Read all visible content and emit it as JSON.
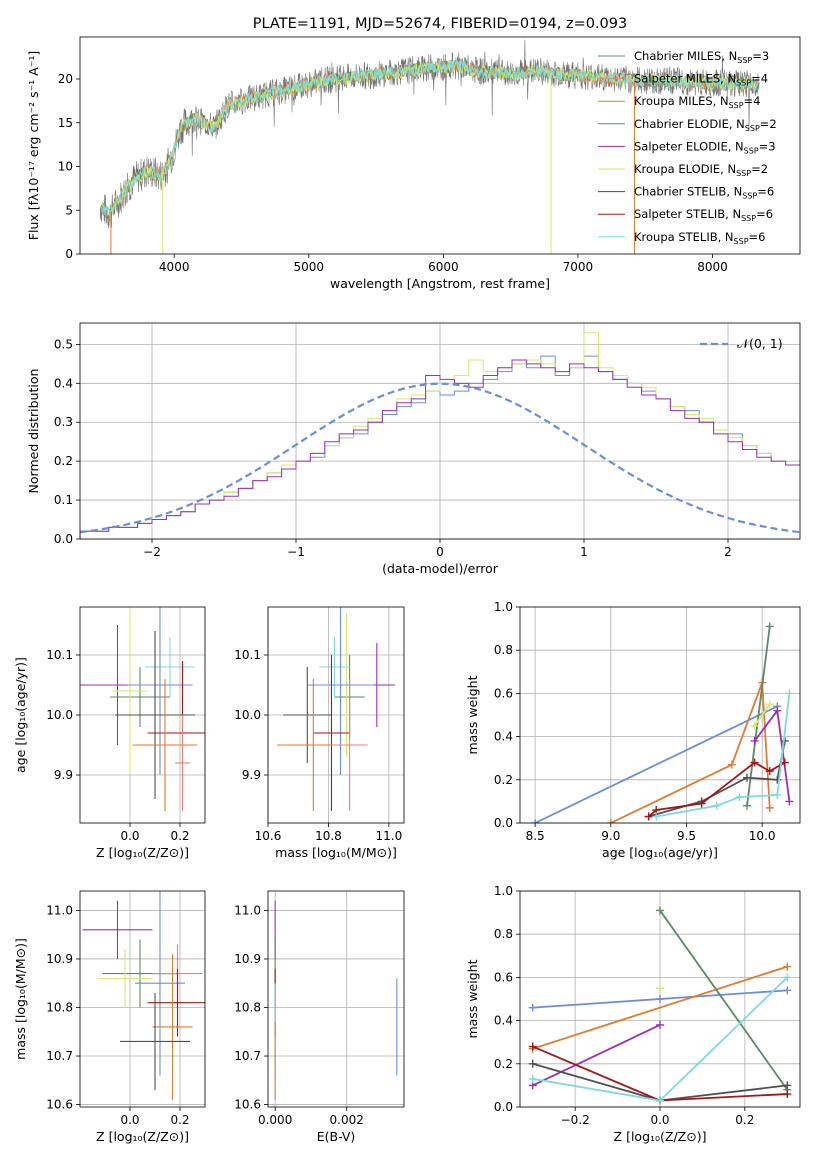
{
  "figure": {
    "title": "PLATE=1191, MJD=52674, FIBERID=0194, z=0.093"
  },
  "colors": {
    "chabrier_miles": "#5f8f70",
    "salpeter_miles": "#e8837a",
    "kroupa_miles": "#c98a2e",
    "chabrier_elodie": "#5f8f5f",
    "salpeter_elodie": "#9b30c9",
    "kroupa_elodie": "#d8e86a",
    "chabrier_stelib": "#4a4a4a",
    "salpeter_stelib": "#a01818",
    "kroupa_stelib": "#80d8d8",
    "blue": "#6b8ed8",
    "orange": "#e07b30",
    "green": "#5a8a66",
    "purple": "#9b30b0",
    "darkgray": "#505050",
    "darkred": "#a01818",
    "cyan": "#80d8e0",
    "yellow": "#d8e870"
  },
  "chart_data": [
    {
      "id": "spectrum",
      "type": "line",
      "title": "PLATE=1191, MJD=52674, FIBERID=0194, z=0.093",
      "xlabel": "wavelength [Angstrom, rest frame]",
      "ylabel": "Flux [fλ10⁻¹⁷ erg cm⁻² s⁻¹ A⁻¹]",
      "xlim": [
        3300,
        8650
      ],
      "ylim": [
        0,
        24.8
      ],
      "xticks": [
        4000,
        5000,
        6000,
        7000,
        8000
      ],
      "yticks": [
        0,
        5,
        10,
        15,
        20
      ],
      "legend_position": "right",
      "continuum": {
        "x": [
          3450,
          3520,
          3600,
          3700,
          3800,
          3900,
          3950,
          4000,
          4050,
          4150,
          4300,
          4400,
          4500,
          4700,
          4900,
          5100,
          5300,
          5500,
          5700,
          5900,
          6100,
          6300,
          6500,
          6700,
          6900,
          7100,
          7300,
          7500,
          7700,
          7900,
          8100,
          8300
        ],
        "y": [
          5.5,
          4.5,
          6.5,
          8.5,
          9.5,
          9.0,
          10.0,
          12.0,
          14.5,
          15.5,
          14.5,
          17.0,
          17.5,
          18.3,
          19.0,
          19.8,
          20.2,
          20.5,
          20.9,
          21.3,
          21.5,
          20.8,
          20.6,
          20.9,
          20.5,
          20.3,
          20.0,
          19.8,
          19.8,
          19.6,
          19.5,
          19.3
        ]
      },
      "series": [
        {
          "name": "Chabrier MILES, N<sub>SSP</sub>=3",
          "color_key": "chabrier_miles"
        },
        {
          "name": "Salpeter MILES, N<sub>SSP</sub>=4",
          "color_key": "salpeter_miles"
        },
        {
          "name": "Kroupa MILES, N<sub>SSP</sub>=4",
          "color_key": "kroupa_miles"
        },
        {
          "name": "Chabrier ELODIE, N<sub>SSP</sub>=2",
          "color_key": "chabrier_elodie"
        },
        {
          "name": "Salpeter ELODIE, N<sub>SSP</sub>=3",
          "color_key": "salpeter_elodie"
        },
        {
          "name": "Kroupa ELODIE, N<sub>SSP</sub>=2",
          "color_key": "kroupa_elodie"
        },
        {
          "name": "Chabrier STELIB, N<sub>SSP</sub>=6",
          "color_key": "chabrier_stelib"
        },
        {
          "name": "Salpeter STELIB, N<sub>SSP</sub>=6",
          "color_key": "salpeter_stelib"
        },
        {
          "name": "Kroupa STELIB, N<sub>SSP</sub>=6",
          "color_key": "kroupa_stelib"
        }
      ]
    },
    {
      "id": "residuals",
      "type": "histogram",
      "xlabel": "(data-model)/error",
      "ylabel": "Normed distribution",
      "xlim": [
        -2.5,
        2.5
      ],
      "ylim": [
        0,
        0.555
      ],
      "xticks": [
        -2,
        -1,
        0,
        1,
        2
      ],
      "yticks": [
        0.0,
        0.1,
        0.2,
        0.3,
        0.4,
        0.5
      ],
      "grid": true,
      "legend_position": "top-right",
      "gaussian_label": "𝒩(0, 1)",
      "bin_width": 0.1,
      "bins_start": -2.5,
      "histograms": [
        {
          "color_key": "blue",
          "values": [
            0.02,
            0.02,
            0.03,
            0.03,
            0.04,
            0.05,
            0.06,
            0.07,
            0.09,
            0.1,
            0.12,
            0.13,
            0.15,
            0.17,
            0.18,
            0.2,
            0.21,
            0.24,
            0.26,
            0.27,
            0.3,
            0.32,
            0.34,
            0.35,
            0.38,
            0.37,
            0.38,
            0.4,
            0.41,
            0.43,
            0.45,
            0.44,
            0.47,
            0.42,
            0.44,
            0.47,
            0.43,
            0.41,
            0.4,
            0.38,
            0.36,
            0.34,
            0.33,
            0.3,
            0.28,
            0.27,
            0.24,
            0.22,
            0.2,
            0.19
          ]
        },
        {
          "color_key": "kroupa_elodie",
          "values": [
            0.02,
            0.02,
            0.03,
            0.03,
            0.04,
            0.05,
            0.06,
            0.07,
            0.09,
            0.1,
            0.12,
            0.13,
            0.15,
            0.17,
            0.19,
            0.2,
            0.22,
            0.24,
            0.26,
            0.29,
            0.31,
            0.33,
            0.36,
            0.37,
            0.38,
            0.4,
            0.42,
            0.46,
            0.43,
            0.44,
            0.45,
            0.46,
            0.45,
            0.43,
            0.44,
            0.53,
            0.44,
            0.42,
            0.4,
            0.39,
            0.36,
            0.34,
            0.32,
            0.31,
            0.28,
            0.26,
            0.24,
            0.22,
            0.2,
            0.19
          ]
        },
        {
          "color_key": "purple",
          "values": [
            0.02,
            0.02,
            0.03,
            0.03,
            0.04,
            0.05,
            0.06,
            0.07,
            0.09,
            0.1,
            0.11,
            0.13,
            0.15,
            0.16,
            0.18,
            0.2,
            0.22,
            0.25,
            0.27,
            0.28,
            0.3,
            0.33,
            0.35,
            0.36,
            0.42,
            0.41,
            0.4,
            0.39,
            0.42,
            0.44,
            0.46,
            0.45,
            0.44,
            0.43,
            0.45,
            0.44,
            0.43,
            0.41,
            0.39,
            0.37,
            0.36,
            0.33,
            0.31,
            0.3,
            0.27,
            0.25,
            0.23,
            0.21,
            0.2,
            0.19
          ]
        }
      ],
      "gaussian_color_key": "blue"
    },
    {
      "id": "age_vs_Z",
      "type": "scatter",
      "xlabel": "Z [log₁₀(Z/Z⊙)]",
      "ylabel": "age  [log₁₀(age/yr)]",
      "xlim": [
        -0.2,
        0.3
      ],
      "ylim": [
        9.82,
        10.18
      ],
      "xticks": [
        0.0,
        0.2
      ],
      "yticks": [
        9.9,
        10.0,
        10.1
      ],
      "grid": true,
      "points": [
        {
          "color_key": "purple",
          "x": -0.05,
          "xerr": 0.15,
          "y": 10.05,
          "yerr": 0.1
        },
        {
          "color_key": "green",
          "x": 0.04,
          "xerr": 0.12,
          "y": 10.03,
          "yerr": 0.05
        },
        {
          "color_key": "kroupa_elodie",
          "x": 0.0,
          "xerr": 0.07,
          "y": 10.04,
          "yerr": 0.14
        },
        {
          "color_key": "cyan",
          "x": 0.16,
          "xerr": 0.1,
          "y": 10.08,
          "yerr": 0.05
        },
        {
          "color_key": "blue",
          "x": 0.12,
          "xerr": 0.13,
          "y": 10.05,
          "yerr": 0.15
        },
        {
          "color_key": "darkgray",
          "x": 0.1,
          "xerr": 0.16,
          "y": 10.0,
          "yerr": 0.14
        },
        {
          "color_key": "darkred",
          "x": 0.21,
          "xerr": 0.14,
          "y": 9.97,
          "yerr": 0.12
        },
        {
          "color_key": "orange",
          "x": 0.14,
          "xerr": 0.13,
          "y": 9.95,
          "yerr": 0.11
        },
        {
          "color_key": "salpeter_miles",
          "x": 0.21,
          "xerr": 0.03,
          "y": 9.92,
          "yerr": 0.08
        }
      ]
    },
    {
      "id": "age_vs_mass",
      "type": "scatter",
      "xlabel": "mass [log₁₀(M/M⊙)]",
      "ylabel": "",
      "xlim": [
        10.6,
        11.05
      ],
      "ylim": [
        9.82,
        10.18
      ],
      "xticks": [
        10.6,
        10.8,
        11.0
      ],
      "yticks": [
        9.9,
        10.0,
        10.1
      ],
      "grid": true,
      "points": [
        {
          "color_key": "purple",
          "x": 10.96,
          "xerr": 0.06,
          "y": 10.05,
          "yerr": 0.07
        },
        {
          "color_key": "green",
          "x": 10.87,
          "xerr": 0.05,
          "y": 10.03,
          "yerr": 0.07
        },
        {
          "color_key": "kroupa_elodie",
          "x": 10.86,
          "xerr": 0.03,
          "y": 10.05,
          "yerr": 0.12
        },
        {
          "color_key": "cyan",
          "x": 10.82,
          "xerr": 0.05,
          "y": 10.08,
          "yerr": 0.05
        },
        {
          "color_key": "blue",
          "x": 10.84,
          "xerr": 0.11,
          "y": 10.05,
          "yerr": 0.15
        },
        {
          "color_key": "darkgray",
          "x": 10.73,
          "xerr": 0.08,
          "y": 10.0,
          "yerr": 0.08
        },
        {
          "color_key": "darkred",
          "x": 10.81,
          "xerr": 0.06,
          "y": 9.97,
          "yerr": 0.13
        },
        {
          "color_key": "orange",
          "x": 10.75,
          "xerr": 0.12,
          "y": 9.95,
          "yerr": 0.11
        },
        {
          "color_key": "salpeter_miles",
          "x": 10.87,
          "xerr": 0.06,
          "y": 9.95,
          "yerr": 0.11
        }
      ]
    },
    {
      "id": "weight_vs_age",
      "type": "line",
      "xlabel": "age  [log₁₀(age/yr)]",
      "ylabel": "mass weight",
      "xlim": [
        8.4,
        10.25
      ],
      "ylim": [
        0,
        1.0
      ],
      "xticks": [
        8.5,
        9.0,
        9.5,
        10.0
      ],
      "yticks": [
        0.0,
        0.2,
        0.4,
        0.6,
        0.8,
        1.0
      ],
      "grid": true,
      "series": [
        {
          "color_key": "blue",
          "x": [
            8.5,
            10.1
          ],
          "y": [
            0.0,
            0.54
          ]
        },
        {
          "color_key": "orange",
          "x": [
            9.0,
            9.8,
            10.0,
            10.05
          ],
          "y": [
            0.0,
            0.27,
            0.65,
            0.07
          ]
        },
        {
          "color_key": "green",
          "x": [
            9.9,
            10.05
          ],
          "y": [
            0.08,
            0.91
          ]
        },
        {
          "color_key": "purple",
          "x": [
            9.95,
            10.1,
            10.18
          ],
          "y": [
            0.38,
            0.52,
            0.1
          ]
        },
        {
          "color_key": "darkgray",
          "x": [
            9.25,
            9.6,
            9.9,
            10.1,
            10.15
          ],
          "y": [
            0.03,
            0.1,
            0.21,
            0.2,
            0.38
          ]
        },
        {
          "color_key": "darkred",
          "x": [
            9.25,
            9.3,
            9.6,
            9.95,
            10.05,
            10.15
          ],
          "y": [
            0.03,
            0.06,
            0.09,
            0.28,
            0.24,
            0.28
          ]
        },
        {
          "color_key": "cyan",
          "x": [
            9.3,
            9.7,
            9.85,
            10.1,
            10.18
          ],
          "y": [
            0.03,
            0.08,
            0.12,
            0.13,
            0.6
          ]
        },
        {
          "color_key": "yellow",
          "x": [
            9.95,
            10.05
          ],
          "y": [
            0.45,
            0.55
          ]
        }
      ]
    },
    {
      "id": "mass_vs_Z",
      "type": "scatter",
      "xlabel": "Z [log₁₀(Z/Z⊙)]",
      "ylabel": "mass [log₁₀(M/M⊙)]",
      "xlim": [
        -0.2,
        0.3
      ],
      "ylim": [
        10.595,
        11.04
      ],
      "xticks": [
        0.0,
        0.2
      ],
      "yticks": [
        10.6,
        10.7,
        10.8,
        10.9,
        11.0
      ],
      "grid": true,
      "points": [
        {
          "color_key": "purple",
          "x": -0.05,
          "xerr": 0.14,
          "y": 10.96,
          "yerr": 0.06
        },
        {
          "color_key": "green",
          "x": 0.04,
          "xerr": 0.15,
          "y": 10.87,
          "yerr": 0.07
        },
        {
          "color_key": "kroupa_elodie",
          "x": -0.02,
          "xerr": 0.11,
          "y": 10.86,
          "yerr": 0.06
        },
        {
          "color_key": "salpeter_miles",
          "x": 0.19,
          "xerr": 0.1,
          "y": 10.87,
          "yerr": 0.06
        },
        {
          "color_key": "blue",
          "x": 0.12,
          "xerr": 0.1,
          "y": 10.85,
          "yerr": 0.19
        },
        {
          "color_key": "darkred",
          "x": 0.19,
          "xerr": 0.12,
          "y": 10.81,
          "yerr": 0.07
        },
        {
          "color_key": "orange",
          "x": 0.17,
          "xerr": 0.08,
          "y": 10.76,
          "yerr": 0.15
        },
        {
          "color_key": "darkgray",
          "x": 0.1,
          "xerr": 0.14,
          "y": 10.73,
          "yerr": 0.1
        }
      ]
    },
    {
      "id": "mass_vs_EBV",
      "type": "scatter",
      "xlabel": "E(B-V)",
      "ylabel": "",
      "xlim": [
        -0.0002,
        0.0036
      ],
      "ylim": [
        10.595,
        11.04
      ],
      "xticks": [
        0.0,
        0.002
      ],
      "xtick_labels": [
        "0.000",
        "0.002"
      ],
      "yticks": [
        10.6,
        10.7,
        10.8,
        10.9,
        11.0
      ],
      "grid": true,
      "points": [
        {
          "color_key": "purple",
          "x": 0.0,
          "y": 10.96,
          "yerr": 0.06
        },
        {
          "color_key": "green",
          "x": 0.0,
          "y": 10.87,
          "yerr": 0.07
        },
        {
          "color_key": "darkred",
          "x": 0.0,
          "y": 10.81,
          "yerr": 0.07
        },
        {
          "color_key": "cyan",
          "x": 0.0,
          "y": 10.75,
          "yerr": 0.1
        },
        {
          "color_key": "orange",
          "x": 0.0,
          "y": 10.69,
          "yerr": 0.08
        },
        {
          "color_key": "blue",
          "x": 0.0034,
          "y": 10.76,
          "yerr": 0.1
        }
      ]
    },
    {
      "id": "weight_vs_Z",
      "type": "line",
      "xlabel": "Z [log₁₀(Z/Z⊙)]",
      "ylabel": "mass weight",
      "xlim": [
        -0.33,
        0.33
      ],
      "ylim": [
        0,
        1.0
      ],
      "xticks": [
        -0.2,
        0.0,
        0.2
      ],
      "yticks": [
        0.0,
        0.2,
        0.4,
        0.6,
        0.8,
        1.0
      ],
      "grid": true,
      "series": [
        {
          "color_key": "blue",
          "x": [
            -0.3,
            0.0,
            0.3
          ],
          "y": [
            0.46,
            0.5,
            0.54
          ]
        },
        {
          "color_key": "orange",
          "x": [
            -0.3,
            0.3
          ],
          "y": [
            0.27,
            0.65
          ]
        },
        {
          "color_key": "green",
          "x": [
            0.0,
            0.3
          ],
          "y": [
            0.91,
            0.08
          ]
        },
        {
          "color_key": "purple",
          "x": [
            -0.3,
            0.0
          ],
          "y": [
            0.1,
            0.38
          ]
        },
        {
          "color_key": "darkgray",
          "x": [
            -0.3,
            0.0,
            0.3
          ],
          "y": [
            0.2,
            0.03,
            0.1
          ]
        },
        {
          "color_key": "darkred",
          "x": [
            -0.3,
            0.0,
            0.3
          ],
          "y": [
            0.28,
            0.03,
            0.06
          ]
        },
        {
          "color_key": "cyan",
          "x": [
            -0.3,
            0.0,
            0.3
          ],
          "y": [
            0.13,
            0.03,
            0.6
          ]
        },
        {
          "color_key": "yellow",
          "x": [
            0.0
          ],
          "y": [
            0.55
          ]
        }
      ]
    }
  ]
}
